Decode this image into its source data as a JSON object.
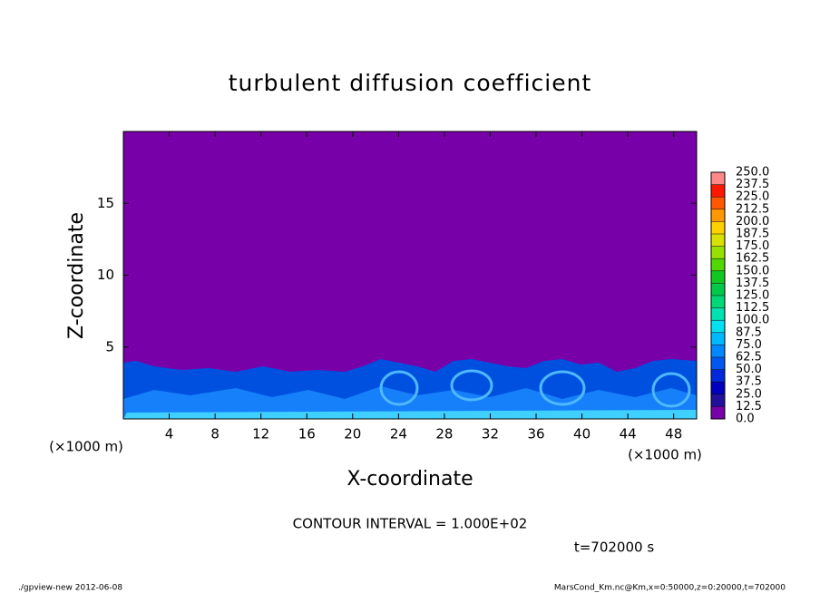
{
  "chart_data": {
    "type": "contour",
    "title": "turbulent diffusion coefficient",
    "xlabel": "X-coordinate",
    "ylabel": "Z-coordinate",
    "x_unit_label": "(×1000 m)",
    "xlim": [
      0,
      50
    ],
    "xticks": [
      4,
      8,
      12,
      16,
      20,
      24,
      28,
      32,
      36,
      40,
      44,
      48
    ],
    "ylim": [
      0,
      20
    ],
    "yticks": [
      5,
      10,
      15
    ],
    "colorbar": {
      "levels": [
        {
          "value": 0,
          "label": "0.0"
        },
        12.5,
        25,
        37.5,
        50,
        62.5,
        75,
        87.5,
        100,
        112.5,
        125,
        137.5,
        150,
        162.5,
        175,
        187.5,
        200,
        212.5,
        225,
        237.5,
        {
          "value": 250,
          "label": "250.0"
        }
      ],
      "level_labels": [
        "0.0",
        "12.5",
        "25.0",
        "37.5",
        "50.0",
        "62.5",
        "75.0",
        "87.5",
        "100.0",
        "112.5",
        "125.0",
        "137.5",
        "150.0",
        "162.5",
        "175.0",
        "187.5",
        "200.0",
        "212.5",
        "225.0",
        "237.5",
        "250.0"
      ],
      "colors": [
        "#7800a8",
        "#20109c",
        "#0000c0",
        "#0028dc",
        "#0058f0",
        "#0088ff",
        "#00b8ff",
        "#00e0f0",
        "#00e0b0",
        "#00d878",
        "#00c848",
        "#10c820",
        "#50d800",
        "#98e000",
        "#d8e000",
        "#ffd000",
        "#ff9800",
        "#ff5800",
        "#ff1800",
        "#ff8888"
      ]
    },
    "contour_interval": "CONTOUR INTERVAL = 1.000E+02",
    "time_label": "t=702000 s",
    "footer_left": "./gpview-new  2012-06-08",
    "footer_right": "MarsCond_Km.nc@Km,x=0:50000,z=0:20000,t=702000"
  }
}
